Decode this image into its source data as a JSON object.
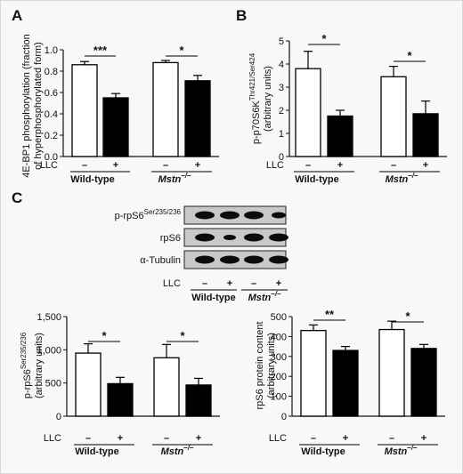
{
  "chart_data": [
    {
      "panel": "A",
      "type": "bar",
      "ylabel": [
        "4E-BP1 phosphorylation (fraction",
        "of hyperphosphorylated form)"
      ],
      "ylim": [
        0,
        1.0
      ],
      "yticks": [
        "0.0",
        "0.2",
        "0.4",
        "0.6",
        "0.8",
        "1.0"
      ],
      "llc_label": "LLC",
      "conditions": [
        "–",
        "+",
        "–",
        "+"
      ],
      "groups": [
        "Wild-type",
        "Mstn"
      ],
      "group_sup": "–/–",
      "values": [
        0.86,
        0.55,
        0.88,
        0.71
      ],
      "errors": [
        0.03,
        0.04,
        0.02,
        0.05
      ],
      "fill": [
        "white",
        "black",
        "white",
        "black"
      ],
      "significance": [
        "***",
        "*"
      ]
    },
    {
      "panel": "B",
      "type": "bar",
      "ylabel": [
        "p-p70S6K",
        "(arbitrary units)"
      ],
      "ylabel_sup": "Thr421/Ser424",
      "ylim": [
        0,
        5
      ],
      "yticks": [
        "0",
        "1",
        "2",
        "3",
        "4",
        "5"
      ],
      "llc_label": "LLC",
      "conditions": [
        "–",
        "+",
        "–",
        "+"
      ],
      "groups": [
        "Wild-type",
        "Mstn"
      ],
      "group_sup": "–/–",
      "values": [
        3.8,
        1.75,
        3.45,
        1.85
      ],
      "errors": [
        0.75,
        0.25,
        0.45,
        0.55
      ],
      "fill": [
        "white",
        "black",
        "white",
        "black"
      ],
      "significance": [
        "*",
        "*"
      ]
    },
    {
      "panel": "C-left",
      "type": "bar",
      "ylabel": [
        "p-rpS6",
        "(arbitrary units)"
      ],
      "ylabel_sup": "Ser235/236",
      "ylim": [
        0,
        1500
      ],
      "yticks": [
        "0",
        "500",
        "1,000",
        "1,500"
      ],
      "llc_label": "LLC",
      "conditions": [
        "–",
        "+",
        "–",
        "+"
      ],
      "groups": [
        "Wild-type",
        "Mstn"
      ],
      "group_sup": "–/–",
      "values": [
        950,
        490,
        880,
        470
      ],
      "errors": [
        140,
        95,
        200,
        100
      ],
      "fill": [
        "white",
        "black",
        "white",
        "black"
      ],
      "significance": [
        "*",
        "*"
      ]
    },
    {
      "panel": "C-right",
      "type": "bar",
      "ylabel": [
        "rpS6 protein content",
        "(arbitrary units)"
      ],
      "ylim": [
        0,
        500
      ],
      "yticks": [
        "0",
        "100",
        "200",
        "300",
        "400",
        "500"
      ],
      "llc_label": "LLC",
      "conditions": [
        "–",
        "+",
        "–",
        "+"
      ],
      "groups": [
        "Wild-type",
        "Mstn"
      ],
      "group_sup": "–/–",
      "values": [
        430,
        330,
        435,
        340
      ],
      "errors": [
        28,
        20,
        42,
        20
      ],
      "fill": [
        "white",
        "black",
        "white",
        "black"
      ],
      "significance": [
        "**",
        "*"
      ]
    }
  ],
  "panel_labels": [
    "A",
    "B",
    "C"
  ],
  "blot": {
    "rows": [
      {
        "label": "p-rpS6",
        "sup": "Ser235/236"
      },
      {
        "label": "rpS6",
        "sup": ""
      },
      {
        "label": "α-Tubulin",
        "sup": ""
      }
    ],
    "llc_label": "LLC",
    "conditions": [
      "–",
      "+",
      "–",
      "+"
    ],
    "groups": [
      "Wild-type",
      "Mstn"
    ],
    "group_sup": "–/–"
  }
}
